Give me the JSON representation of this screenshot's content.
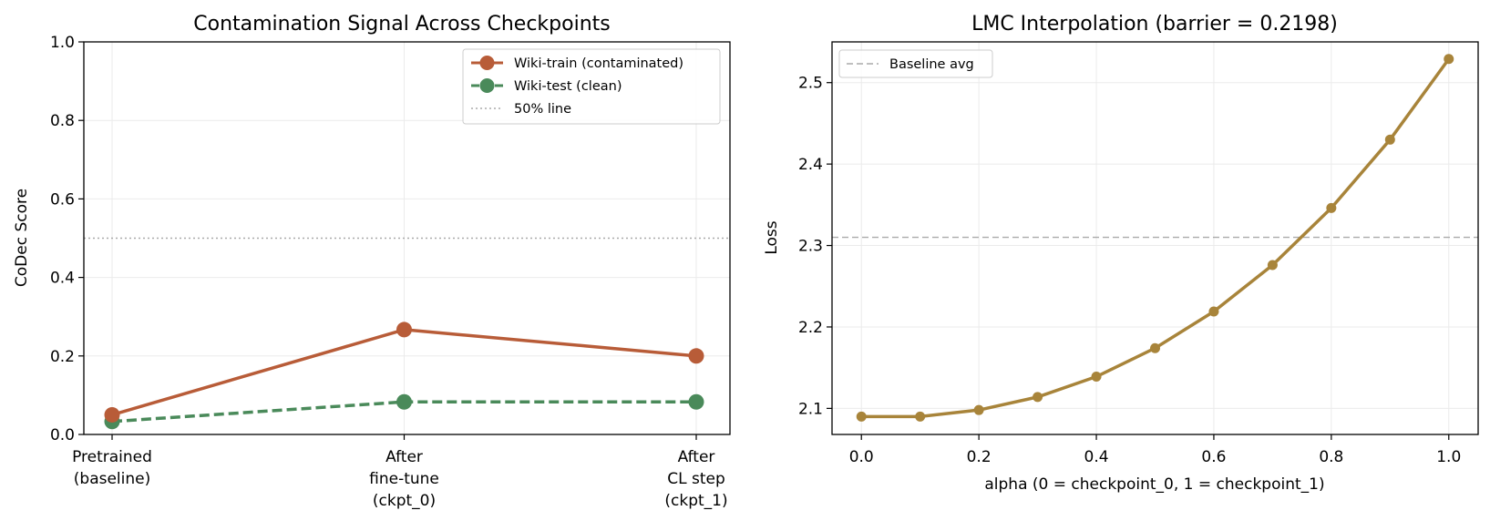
{
  "chart_data": [
    {
      "type": "line",
      "title": "Contamination Signal Across Checkpoints",
      "xlabel": "",
      "ylabel": "CoDec Score",
      "categories": [
        [
          "Pretrained",
          "(baseline)"
        ],
        [
          "After",
          "fine-tune",
          "(ckpt_0)"
        ],
        [
          "After",
          "CL step",
          "(ckpt_1)"
        ]
      ],
      "ylim": [
        0,
        1.0
      ],
      "yticks": [
        "0.0",
        "0.2",
        "0.4",
        "0.6",
        "0.8",
        "1.0"
      ],
      "grid": true,
      "legend_position": "top-right",
      "series": [
        {
          "name": "Wiki-train (contaminated)",
          "values": [
            0.05,
            0.267,
            0.2
          ],
          "color": "#b85c38",
          "style": "solid"
        },
        {
          "name": "Wiki-test (clean)",
          "values": [
            0.033,
            0.083,
            0.083
          ],
          "color": "#4a8a5a",
          "style": "dashed"
        }
      ],
      "reference_line": {
        "name": "50% line",
        "value": 0.5,
        "color": "#aaaaaa",
        "style": "dotted"
      }
    },
    {
      "type": "line",
      "title": "LMC Interpolation  (barrier = 0.2198)",
      "xlabel": "alpha  (0 = checkpoint_0,  1 = checkpoint_1)",
      "ylabel": "Loss",
      "x": [
        0.0,
        0.1,
        0.2,
        0.3,
        0.4,
        0.5,
        0.6,
        0.7,
        0.8,
        0.9,
        1.0
      ],
      "xticks": [
        "0.0",
        "0.2",
        "0.4",
        "0.6",
        "0.8",
        "1.0"
      ],
      "yticks": [
        "2.1",
        "2.2",
        "2.3",
        "2.4",
        "2.5"
      ],
      "xlim": [
        -0.05,
        1.05
      ],
      "ylim": [
        2.068,
        2.55
      ],
      "grid": true,
      "legend_position": "top-left",
      "series": [
        {
          "values": [
            2.09,
            2.09,
            2.098,
            2.114,
            2.139,
            2.174,
            2.219,
            2.276,
            2.346,
            2.43,
            2.529
          ],
          "color": "#a8843a",
          "style": "solid"
        }
      ],
      "reference_line": {
        "name": "Baseline avg",
        "value": 2.31,
        "color": "#aaaaaa",
        "style": "dashed"
      }
    }
  ]
}
